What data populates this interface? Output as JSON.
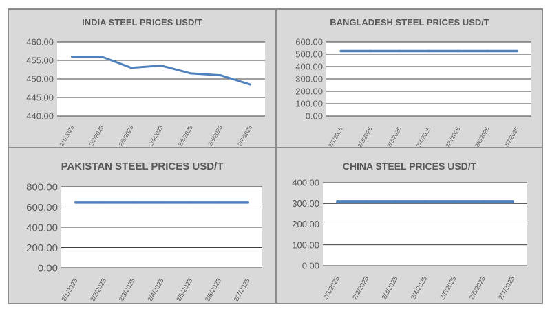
{
  "colors": {
    "line": "#4f81bd",
    "panel_bg": "#d9d9d9",
    "plot_bg": "#ffffff",
    "text": "#595959",
    "grid": "#bfbfbf"
  },
  "chart_data": [
    {
      "type": "line",
      "title": "INDIA STEEL PRICES USD/T",
      "categories": [
        "2/1/2025",
        "2/2/2025",
        "2/3/2025",
        "2/4/2025",
        "2/5/2025",
        "2/6/2025",
        "2/7/2025"
      ],
      "series": [
        {
          "name": "India",
          "values": [
            456,
            456,
            453,
            453.6,
            451.5,
            451,
            448.5
          ]
        }
      ],
      "yticks": [
        "440.00",
        "445.00",
        "450.00",
        "455.00",
        "460.00"
      ],
      "ylim": [
        440,
        460
      ]
    },
    {
      "type": "line",
      "title": "BANGLADESH STEEL PRICES USD/T",
      "categories": [
        "2/1/2025",
        "2/2/2025",
        "2/3/2025",
        "2/4/2025",
        "2/5/2025",
        "2/6/2025",
        "2/7/2025"
      ],
      "series": [
        {
          "name": "Bangladesh",
          "values": [
            525,
            525,
            525,
            525,
            525,
            525,
            525
          ]
        }
      ],
      "yticks": [
        "0.00",
        "100.00",
        "200.00",
        "300.00",
        "400.00",
        "500.00",
        "600.00"
      ],
      "ylim": [
        0,
        600
      ]
    },
    {
      "type": "line",
      "title": "PAKISTAN STEEL PRICES USD/T",
      "categories": [
        "2/1/2025",
        "2/2/2025",
        "2/3/2025",
        "2/4/2025",
        "2/5/2025",
        "2/6/2025",
        "2/7/2025"
      ],
      "series": [
        {
          "name": "Pakistan",
          "values": [
            645,
            645,
            645,
            645,
            645,
            645,
            645
          ]
        }
      ],
      "yticks": [
        "0.00",
        "200.00",
        "400.00",
        "600.00",
        "800.00"
      ],
      "ylim": [
        0,
        800
      ]
    },
    {
      "type": "line",
      "title": "CHINA STEEL PRICES USD/T",
      "categories": [
        "2/1/2025",
        "2/2/2025",
        "2/3/2025",
        "2/4/2025",
        "2/5/2025",
        "2/6/2025",
        "2/7/2025"
      ],
      "series": [
        {
          "name": "China",
          "values": [
            307,
            307,
            307,
            307,
            307,
            307,
            307
          ]
        }
      ],
      "yticks": [
        "0.00",
        "100.00",
        "200.00",
        "300.00",
        "400.00"
      ],
      "ylim": [
        0,
        400
      ]
    }
  ]
}
